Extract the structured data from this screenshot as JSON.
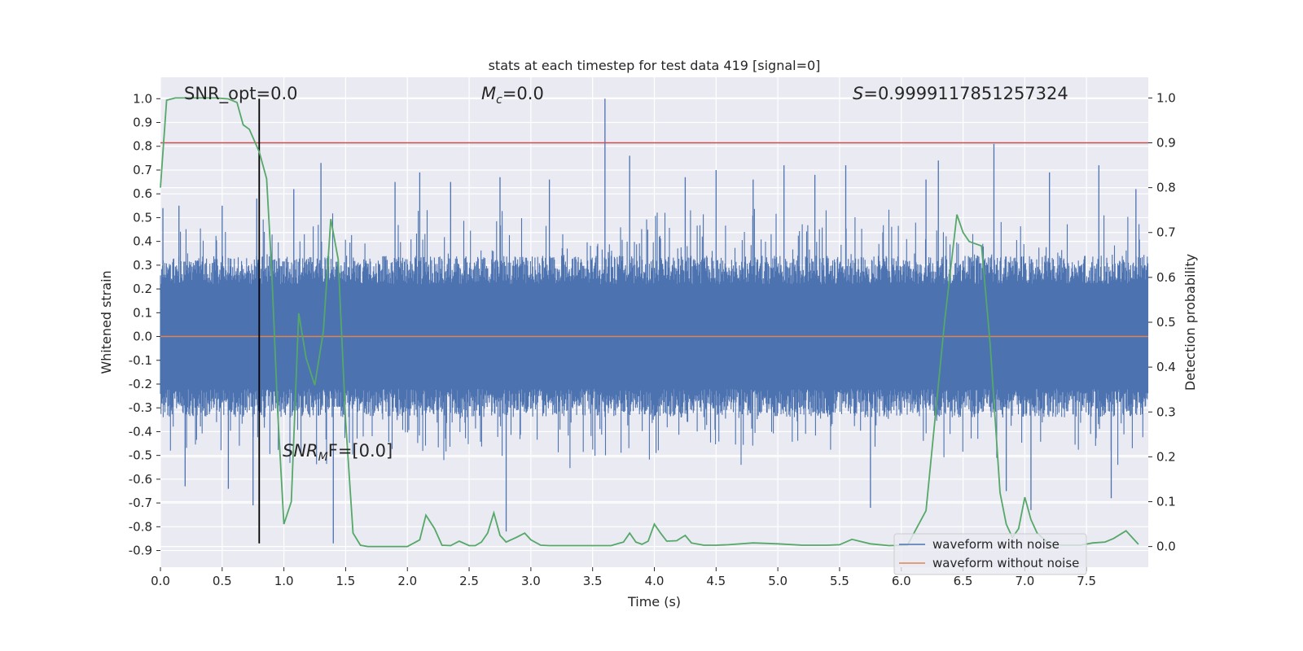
{
  "chart_data": {
    "type": "line",
    "title": "stats at each timestep for test data 419 [signal=0]",
    "xlabel": "Time (s)",
    "ylabel": "Whitened strain",
    "y2label": "Detection probability",
    "xlim": [
      0.0,
      8.0
    ],
    "ylim": [
      -0.97,
      1.09
    ],
    "y2lim": [
      -0.046,
      1.046
    ],
    "xticks": [
      0.0,
      0.5,
      1.0,
      1.5,
      2.0,
      2.5,
      3.0,
      3.5,
      4.0,
      4.5,
      5.0,
      5.5,
      6.0,
      6.5,
      7.0,
      7.5
    ],
    "xtick_labels": [
      "0.0",
      "0.5",
      "1.0",
      "1.5",
      "2.0",
      "2.5",
      "3.0",
      "3.5",
      "4.0",
      "4.5",
      "5.0",
      "5.5",
      "6.0",
      "6.5",
      "7.0",
      "7.5"
    ],
    "yticks": [
      1.0,
      0.9,
      0.8,
      0.7,
      0.6,
      0.5,
      0.4,
      0.3,
      0.2,
      0.1,
      0.0,
      -0.1,
      -0.2,
      -0.3,
      -0.4,
      -0.5,
      -0.6,
      -0.7,
      -0.8,
      -0.9
    ],
    "ytick_labels": [
      "1.0",
      "0.9",
      "0.8",
      "0.7",
      "0.6",
      "0.5",
      "0.4",
      "0.3",
      "0.2",
      "0.1",
      "0.0",
      "-0.1",
      "-0.2",
      "-0.3",
      "-0.4",
      "-0.5",
      "-0.6",
      "-0.7",
      "-0.8",
      "-0.9"
    ],
    "y2ticks": [
      1.0,
      0.9,
      0.8,
      0.7,
      0.6,
      0.5,
      0.4,
      0.3,
      0.2,
      0.1,
      0.0
    ],
    "y2tick_labels": [
      "1.0",
      "0.9",
      "0.8",
      "0.7",
      "0.6",
      "0.5",
      "0.4",
      "0.3",
      "0.2",
      "0.1",
      "0.0"
    ],
    "grid": true,
    "legend_position": "lower-right",
    "annotations": {
      "snr_opt": "SNR_opt=0.0",
      "mc_symbol": "M",
      "mc_sub": "c",
      "mc_value": "=0.0",
      "s_symbol": "S",
      "s_value": "=0.9999117851257324",
      "snr_mf_symbol": "SNR",
      "snr_mf_sub": "M",
      "snr_mf_value": "F=[0.0]"
    },
    "series": [
      {
        "name": "waveform with noise",
        "color": "#4c72b0",
        "description_values": "dense noise roughly within ±0.3, spikes to ±0.6, max 1.0 at t≈3.6 s, min ≈ -0.87",
        "peak_spikes": [
          {
            "x": 0.02,
            "y": 0.54
          },
          {
            "x": 0.15,
            "y": 0.55
          },
          {
            "x": 0.2,
            "y": -0.63
          },
          {
            "x": 0.5,
            "y": 0.55
          },
          {
            "x": 0.55,
            "y": -0.64
          },
          {
            "x": 0.75,
            "y": -0.71
          },
          {
            "x": 0.78,
            "y": 0.58
          },
          {
            "x": 1.08,
            "y": 0.62
          },
          {
            "x": 1.3,
            "y": 0.73
          },
          {
            "x": 1.4,
            "y": -0.87
          },
          {
            "x": 1.9,
            "y": 0.65
          },
          {
            "x": 2.1,
            "y": 0.69
          },
          {
            "x": 2.35,
            "y": 0.65
          },
          {
            "x": 2.75,
            "y": 0.67
          },
          {
            "x": 2.8,
            "y": -0.82
          },
          {
            "x": 3.15,
            "y": 0.66
          },
          {
            "x": 3.6,
            "y": 1.0
          },
          {
            "x": 3.8,
            "y": 0.76
          },
          {
            "x": 4.25,
            "y": 0.67
          },
          {
            "x": 4.5,
            "y": 0.7
          },
          {
            "x": 4.8,
            "y": 0.66
          },
          {
            "x": 5.05,
            "y": 0.72
          },
          {
            "x": 5.3,
            "y": 0.68
          },
          {
            "x": 5.55,
            "y": 0.72
          },
          {
            "x": 5.75,
            "y": -0.72
          },
          {
            "x": 6.2,
            "y": 0.66
          },
          {
            "x": 6.3,
            "y": 0.74
          },
          {
            "x": 6.75,
            "y": 0.81
          },
          {
            "x": 6.85,
            "y": -0.65
          },
          {
            "x": 7.05,
            "y": -0.73
          },
          {
            "x": 7.2,
            "y": 0.69
          },
          {
            "x": 7.6,
            "y": 0.72
          },
          {
            "x": 7.7,
            "y": -0.68
          },
          {
            "x": 7.9,
            "y": 0.62
          }
        ]
      },
      {
        "name": "waveform without noise",
        "color": "#dd8452",
        "x": [
          0.0,
          8.0
        ],
        "y": [
          0.0,
          0.0
        ]
      }
    ],
    "detection_probability": {
      "color": "#55a868",
      "axis": "right",
      "x": [
        0.0,
        0.05,
        0.12,
        0.18,
        0.25,
        0.35,
        0.45,
        0.55,
        0.62,
        0.67,
        0.72,
        0.8,
        0.86,
        0.9,
        0.95,
        1.0,
        1.06,
        1.12,
        1.18,
        1.25,
        1.32,
        1.38,
        1.44,
        1.5,
        1.56,
        1.62,
        1.68,
        1.75,
        1.85,
        2.0,
        2.1,
        2.15,
        2.22,
        2.28,
        2.35,
        2.42,
        2.5,
        2.55,
        2.6,
        2.65,
        2.7,
        2.75,
        2.8,
        2.88,
        2.95,
        3.0,
        3.08,
        3.15,
        3.3,
        3.5,
        3.65,
        3.75,
        3.8,
        3.85,
        3.9,
        3.95,
        4.0,
        4.05,
        4.1,
        4.18,
        4.25,
        4.3,
        4.4,
        4.5,
        4.6,
        4.8,
        5.0,
        5.2,
        5.4,
        5.5,
        5.6,
        5.75,
        5.9,
        6.05,
        6.2,
        6.35,
        6.45,
        6.5,
        6.55,
        6.65,
        6.72,
        6.8,
        6.85,
        6.9,
        6.95,
        7.0,
        7.05,
        7.1,
        7.18,
        7.3,
        7.45,
        7.55,
        7.65,
        7.72,
        7.82,
        7.92
      ],
      "y": [
        0.8,
        0.995,
        1.0,
        1.0,
        1.0,
        1.0,
        1.0,
        0.998,
        0.99,
        0.94,
        0.93,
        0.88,
        0.82,
        0.62,
        0.3,
        0.05,
        0.1,
        0.52,
        0.42,
        0.36,
        0.48,
        0.73,
        0.64,
        0.28,
        0.03,
        0.003,
        0.0,
        0.0,
        0.0,
        0.0,
        0.015,
        0.07,
        0.04,
        0.003,
        0.002,
        0.012,
        0.002,
        0.002,
        0.01,
        0.03,
        0.075,
        0.025,
        0.01,
        0.02,
        0.03,
        0.015,
        0.003,
        0.002,
        0.002,
        0.002,
        0.002,
        0.01,
        0.03,
        0.01,
        0.005,
        0.012,
        0.05,
        0.03,
        0.012,
        0.013,
        0.025,
        0.008,
        0.003,
        0.003,
        0.004,
        0.008,
        0.006,
        0.003,
        0.003,
        0.004,
        0.016,
        0.006,
        0.002,
        0.003,
        0.08,
        0.5,
        0.74,
        0.7,
        0.68,
        0.67,
        0.45,
        0.12,
        0.05,
        0.02,
        0.04,
        0.11,
        0.06,
        0.03,
        0.01,
        0.003,
        0.003,
        0.008,
        0.01,
        0.018,
        0.035,
        0.005
      ]
    },
    "threshold_line": {
      "color": "#c44e52",
      "axis": "right",
      "y": 0.9
    },
    "vertical_line": {
      "color": "#000000",
      "x": 0.8,
      "y_range": [
        -0.87,
        1.0
      ]
    },
    "legend": {
      "entries": [
        {
          "label": "waveform with noise",
          "color": "#4c72b0"
        },
        {
          "label": "waveform without noise",
          "color": "#dd8452"
        }
      ]
    },
    "colors": {
      "background": "#eaeaf2",
      "grid": "#ffffff",
      "text": "#262626"
    }
  }
}
